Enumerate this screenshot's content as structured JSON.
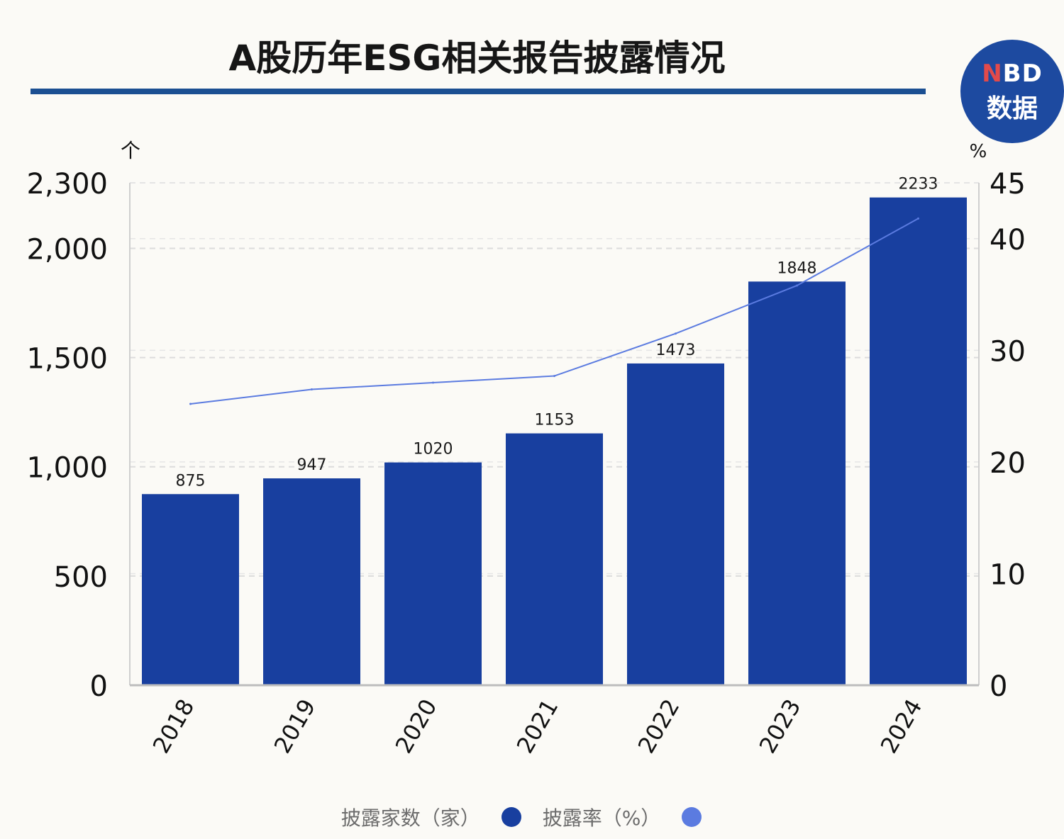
{
  "title": "A股历年ESG相关报告披露情况",
  "logo": {
    "line1_n": "N",
    "line1_rest": "BD",
    "line2": "数据"
  },
  "chart_data": {
    "type": "bar",
    "categories": [
      "2018",
      "2019",
      "2020",
      "2021",
      "2022",
      "2023",
      "2024"
    ],
    "series": [
      {
        "name": "披露家数（家）",
        "type": "bar",
        "axis": "left",
        "values": [
          875,
          947,
          1020,
          1153,
          1473,
          1848,
          2233
        ],
        "color": "#183f9f"
      },
      {
        "name": "披露率（%）",
        "type": "line",
        "axis": "right",
        "values": [
          25.2,
          26.5,
          27.1,
          27.7,
          31.5,
          35.8,
          41.8
        ],
        "color": "#5b7be0"
      }
    ],
    "left_axis": {
      "unit": "个",
      "ylim": [
        0,
        2300
      ],
      "ticks": [
        0,
        500,
        1000,
        1500,
        2000,
        2300
      ],
      "tick_labels": [
        "0",
        "500",
        "1,000",
        "1,500",
        "2,000",
        "2,300"
      ]
    },
    "right_axis": {
      "unit": "%",
      "ylim": [
        0,
        45
      ],
      "ticks": [
        0,
        10,
        20,
        30,
        40,
        45
      ],
      "tick_labels": [
        "0",
        "10",
        "20",
        "30",
        "40",
        "45"
      ]
    },
    "grid": true,
    "legend_position": "bottom"
  }
}
